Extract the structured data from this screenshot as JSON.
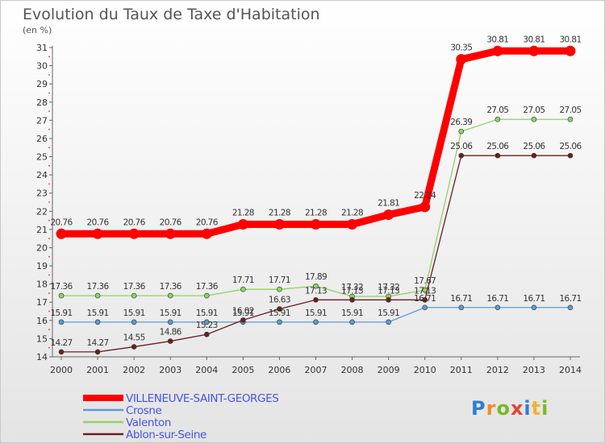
{
  "title": "Evolution du Taux de Taxe d'Habitation",
  "unit_label": "(en %)",
  "brand": [
    "P",
    "r",
    "o",
    "x",
    "i",
    "t",
    "i"
  ],
  "chart_data": {
    "type": "line",
    "title": "Evolution du Taux de Taxe d'Habitation",
    "ylabel": "(en %)",
    "xlabel": "",
    "x": [
      "2000",
      "2001",
      "2002",
      "2003",
      "2004",
      "2005",
      "2006",
      "2007",
      "2008",
      "2009",
      "2010",
      "2011",
      "2012",
      "2013",
      "2014"
    ],
    "ylim": [
      14,
      31
    ],
    "yticks": [
      14,
      15,
      16,
      17,
      18,
      19,
      20,
      21,
      22,
      23,
      24,
      25,
      26,
      27,
      28,
      29,
      30,
      31
    ],
    "grid": false,
    "legend_position": "bottom-left",
    "series": [
      {
        "name": "VILLENEUVE-SAINT-GEORGES",
        "color": "#ff0000",
        "values": [
          20.76,
          20.76,
          20.76,
          20.76,
          20.76,
          21.28,
          21.28,
          21.28,
          21.28,
          21.81,
          22.24,
          30.35,
          30.81,
          30.81,
          30.81
        ],
        "labels": [
          "20.76",
          "20.76",
          "20.76",
          "20.76",
          "20.76",
          "21.28",
          "21.28",
          "21.28",
          "21.28",
          "21.81",
          "22.24",
          "30.35",
          "30.81",
          "30.81",
          "30.81"
        ]
      },
      {
        "name": "Crosne",
        "color": "#5b9bd5",
        "values": [
          15.91,
          15.91,
          15.91,
          15.91,
          15.91,
          15.91,
          15.91,
          15.91,
          15.91,
          15.91,
          16.71,
          16.71,
          16.71,
          16.71,
          16.71
        ],
        "labels": [
          "15.91",
          "15.91",
          "15.91",
          "15.91",
          "15.91",
          "15.91",
          "15.91",
          "15.91",
          "15.91",
          "15.91",
          "16.71",
          "16.71",
          "16.71",
          "16.71",
          "16.71"
        ]
      },
      {
        "name": "Valenton",
        "color": "#8fd45f",
        "values": [
          17.36,
          17.36,
          17.36,
          17.36,
          17.36,
          17.71,
          17.71,
          17.89,
          17.32,
          17.32,
          17.67,
          26.39,
          27.05,
          27.05,
          27.05
        ],
        "labels": [
          "17.36",
          "17.36",
          "17.36",
          "17.36",
          "17.36",
          "17.71",
          "17.71",
          "17.89",
          "17.32",
          "17.32",
          "17.67",
          "26.39",
          "27.05",
          "27.05",
          "27.05"
        ]
      },
      {
        "name": "Ablon-sur-Seine",
        "color": "#6b1f1f",
        "values": [
          14.27,
          14.27,
          14.55,
          14.86,
          15.23,
          16.02,
          16.63,
          17.13,
          17.13,
          17.13,
          17.13,
          25.06,
          25.06,
          25.06,
          25.06
        ],
        "labels": [
          "14.27",
          "14.27",
          "14.55",
          "14.86",
          "15.23",
          "16.02",
          "16.63",
          "17.13",
          "17.13",
          "17.13",
          "17.13",
          "25.06",
          "25.06",
          "25.06",
          "25.06"
        ]
      }
    ]
  }
}
